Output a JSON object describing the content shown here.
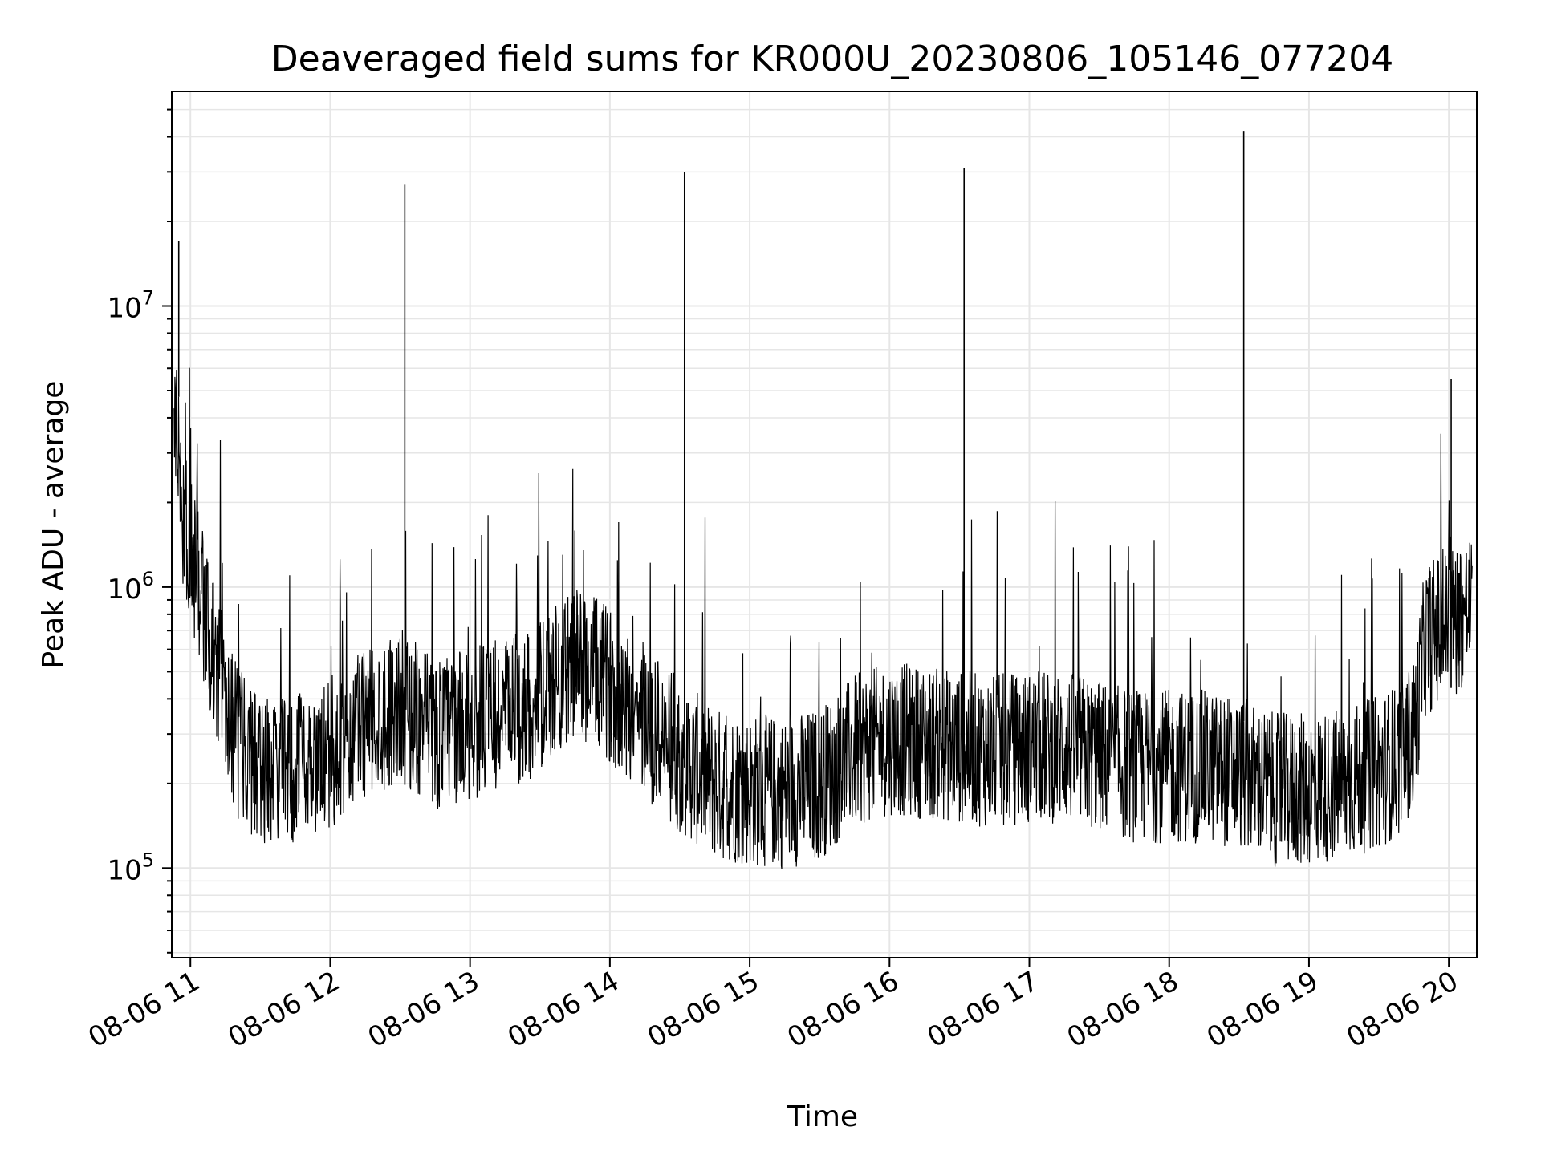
{
  "chart_data": {
    "type": "line",
    "title": "Deaveraged field sums for KR000U_20230806_105146_077204",
    "xlabel": "Time",
    "ylabel": "Peak ADU - average",
    "yscale": "log",
    "ylim": [
      48000,
      58000000
    ],
    "xlim": [
      "2023-08-06 10:52",
      "2023-08-06 20:12"
    ],
    "grid": true,
    "legend": "none",
    "line_color": "#000000",
    "x_ticks": [
      {
        "time": "2023-08-06 11:00",
        "label": "08-06 11"
      },
      {
        "time": "2023-08-06 12:00",
        "label": "08-06 12"
      },
      {
        "time": "2023-08-06 13:00",
        "label": "08-06 13"
      },
      {
        "time": "2023-08-06 14:00",
        "label": "08-06 14"
      },
      {
        "time": "2023-08-06 15:00",
        "label": "08-06 15"
      },
      {
        "time": "2023-08-06 16:00",
        "label": "08-06 16"
      },
      {
        "time": "2023-08-06 17:00",
        "label": "08-06 17"
      },
      {
        "time": "2023-08-06 18:00",
        "label": "08-06 18"
      },
      {
        "time": "2023-08-06 19:00",
        "label": "08-06 19"
      },
      {
        "time": "2023-08-06 20:00",
        "label": "08-06 20"
      }
    ],
    "y_ticks": [
      {
        "value": 100000,
        "base": "10",
        "exp": "5"
      },
      {
        "value": 1000000,
        "base": "10",
        "exp": "6"
      },
      {
        "value": 10000000,
        "base": "10",
        "exp": "7"
      }
    ],
    "series": [
      {
        "x": [
          "2023-08-06 10:53",
          "2023-08-06 10:55",
          "2023-08-06 10:57",
          "2023-08-06 11:00",
          "2023-08-06 11:05",
          "2023-08-06 11:10",
          "2023-08-06 11:15",
          "2023-08-06 11:20",
          "2023-08-06 11:30",
          "2023-08-06 11:45",
          "2023-08-06 12:00",
          "2023-08-06 12:15",
          "2023-08-06 12:30",
          "2023-08-06 12:45",
          "2023-08-06 13:00",
          "2023-08-06 13:15",
          "2023-08-06 13:30",
          "2023-08-06 13:45",
          "2023-08-06 14:00",
          "2023-08-06 14:15",
          "2023-08-06 14:30",
          "2023-08-06 14:45",
          "2023-08-06 15:00",
          "2023-08-06 15:15",
          "2023-08-06 15:30",
          "2023-08-06 15:45",
          "2023-08-06 16:00",
          "2023-08-06 16:15",
          "2023-08-06 16:30",
          "2023-08-06 16:45",
          "2023-08-06 17:00",
          "2023-08-06 17:15",
          "2023-08-06 17:30",
          "2023-08-06 17:45",
          "2023-08-06 18:00",
          "2023-08-06 18:15",
          "2023-08-06 18:30",
          "2023-08-06 18:45",
          "2023-08-06 19:00",
          "2023-08-06 19:15",
          "2023-08-06 19:30",
          "2023-08-06 19:40",
          "2023-08-06 19:45",
          "2023-08-06 19:50",
          "2023-08-06 19:55",
          "2023-08-06 20:00",
          "2023-08-06 20:05",
          "2023-08-06 20:10"
        ],
        "y": [
          4000000,
          3000000,
          1800000,
          1300000,
          900000,
          600000,
          400000,
          280000,
          230000,
          220000,
          260000,
          330000,
          380000,
          300000,
          330000,
          350000,
          400000,
          550000,
          450000,
          330000,
          250000,
          200000,
          190000,
          185000,
          200000,
          260000,
          290000,
          280000,
          270000,
          260000,
          270000,
          270000,
          250000,
          230000,
          230000,
          230000,
          220000,
          190000,
          190000,
          200000,
          220000,
          250000,
          300000,
          650000,
          700000,
          750000,
          800000,
          850000
        ]
      }
    ],
    "spikes": [
      {
        "time": "2023-08-06 10:55",
        "value": 17000000
      },
      {
        "time": "2023-08-06 12:32",
        "value": 27000000
      },
      {
        "time": "2023-08-06 14:32",
        "value": 30000000
      },
      {
        "time": "2023-08-06 16:32",
        "value": 31000000
      },
      {
        "time": "2023-08-06 18:32",
        "value": 42000000
      },
      {
        "time": "2023-08-06 20:01",
        "value": 5500000
      }
    ]
  }
}
